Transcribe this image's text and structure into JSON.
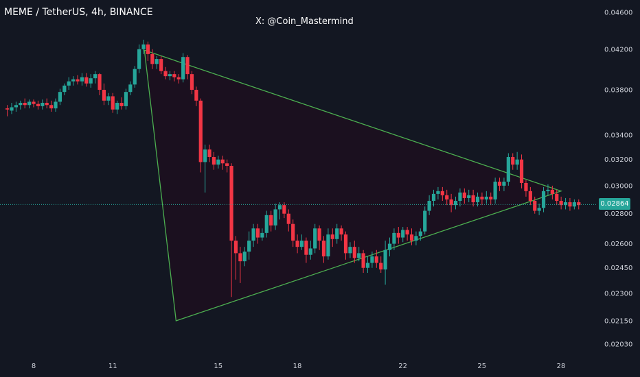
{
  "header": {
    "title": "MEME / TetherUS, 4h, BINANCE",
    "watermark": "X: @Coin_Mastermind"
  },
  "price_badge": "0.02864",
  "colors": {
    "background": "#131722",
    "up": "#26a69a",
    "down": "#f23645",
    "triangle_line": "#4caf50",
    "triangle_fill": "#1b1020",
    "axis_text": "#d1d4dc"
  },
  "chart_data": {
    "type": "candlestick",
    "title": "MEME / TetherUS, 4h, BINANCE",
    "price_axis": {
      "ticks": [
        0.046,
        0.042,
        0.038,
        0.034,
        0.032,
        0.03,
        0.028,
        0.026,
        0.0245,
        0.023,
        0.0215,
        0.0203
      ],
      "tick_labels": [
        "0.04600",
        "0.04200",
        "0.03800",
        "0.03400",
        "0.03200",
        "0.03000",
        "0.02800",
        "0.02600",
        "0.02450",
        "0.02300",
        "0.02150",
        "0.02030"
      ],
      "scale": "log"
    },
    "time_axis": {
      "tick_labels": [
        "8",
        "11",
        "15",
        "18",
        "22",
        "25",
        "28"
      ],
      "tick_days": [
        8,
        11,
        15,
        18,
        22,
        25,
        28
      ]
    },
    "current_price": 0.02864,
    "pattern": {
      "type": "triangle",
      "vertices": [
        {
          "day": 12.2,
          "price": 0.0419
        },
        {
          "day": 28.0,
          "price": 0.0296
        },
        {
          "day": 13.4,
          "price": 0.0215
        }
      ]
    },
    "candles_x_start_day": 7.0,
    "candles_step_days": 0.1667,
    "candles": [
      [
        0.0363,
        0.0362,
        0.0366,
        0.0356
      ],
      [
        0.0361,
        0.0364,
        0.0368,
        0.0358
      ],
      [
        0.0364,
        0.0366,
        0.0369,
        0.036
      ],
      [
        0.0366,
        0.0368,
        0.037,
        0.0362
      ],
      [
        0.0368,
        0.0366,
        0.0372,
        0.0363
      ],
      [
        0.0366,
        0.0369,
        0.0371,
        0.0363
      ],
      [
        0.0369,
        0.0367,
        0.0371,
        0.0364
      ],
      [
        0.0367,
        0.0365,
        0.037,
        0.0362
      ],
      [
        0.0365,
        0.0368,
        0.0371,
        0.0362
      ],
      [
        0.0368,
        0.0366,
        0.0372,
        0.0363
      ],
      [
        0.0366,
        0.0363,
        0.037,
        0.036
      ],
      [
        0.0363,
        0.0369,
        0.0372,
        0.036
      ],
      [
        0.0369,
        0.0378,
        0.0381,
        0.0366
      ],
      [
        0.0378,
        0.0384,
        0.0386,
        0.0375
      ],
      [
        0.0384,
        0.0388,
        0.0392,
        0.038
      ],
      [
        0.0388,
        0.039,
        0.0393,
        0.0384
      ],
      [
        0.039,
        0.0388,
        0.0394,
        0.0385
      ],
      [
        0.0388,
        0.0392,
        0.0396,
        0.0384
      ],
      [
        0.0392,
        0.0386,
        0.0396,
        0.0383
      ],
      [
        0.0386,
        0.0391,
        0.0395,
        0.0382
      ],
      [
        0.0391,
        0.0395,
        0.0398,
        0.0386
      ],
      [
        0.0395,
        0.038,
        0.0396,
        0.0375
      ],
      [
        0.038,
        0.037,
        0.0386,
        0.0366
      ],
      [
        0.037,
        0.0374,
        0.0377,
        0.0366
      ],
      [
        0.0374,
        0.0362,
        0.0377,
        0.0359
      ],
      [
        0.0362,
        0.0368,
        0.037,
        0.0358
      ],
      [
        0.0368,
        0.0365,
        0.0373,
        0.0362
      ],
      [
        0.0365,
        0.0378,
        0.0381,
        0.0362
      ],
      [
        0.0378,
        0.0385,
        0.0388,
        0.0375
      ],
      [
        0.0385,
        0.04,
        0.0403,
        0.0382
      ],
      [
        0.04,
        0.042,
        0.0425,
        0.0396
      ],
      [
        0.042,
        0.0425,
        0.043,
        0.0415
      ],
      [
        0.0425,
        0.0415,
        0.0428,
        0.0408
      ],
      [
        0.0415,
        0.0405,
        0.042,
        0.04
      ],
      [
        0.0405,
        0.041,
        0.0413,
        0.04
      ],
      [
        0.041,
        0.0398,
        0.0413,
        0.0395
      ],
      [
        0.0398,
        0.0393,
        0.0402,
        0.039
      ],
      [
        0.0393,
        0.0395,
        0.0398,
        0.0389
      ],
      [
        0.0395,
        0.0392,
        0.0398,
        0.0388
      ],
      [
        0.0392,
        0.039,
        0.0395,
        0.0386
      ],
      [
        0.039,
        0.0412,
        0.0416,
        0.0387
      ],
      [
        0.0412,
        0.0395,
        0.0414,
        0.039
      ],
      [
        0.0395,
        0.038,
        0.0398,
        0.0376
      ],
      [
        0.038,
        0.037,
        0.0383,
        0.0365
      ],
      [
        0.037,
        0.0318,
        0.0372,
        0.031
      ],
      [
        0.0318,
        0.0328,
        0.0332,
        0.0295
      ],
      [
        0.0328,
        0.0322,
        0.0332,
        0.0318
      ],
      [
        0.0322,
        0.0316,
        0.0326,
        0.0312
      ],
      [
        0.0316,
        0.032,
        0.0323,
        0.0313
      ],
      [
        0.032,
        0.0317,
        0.0323,
        0.0312
      ],
      [
        0.0317,
        0.0315,
        0.032,
        0.031
      ],
      [
        0.0315,
        0.0262,
        0.0317,
        0.0228
      ],
      [
        0.0262,
        0.0254,
        0.0265,
        0.0238
      ],
      [
        0.0254,
        0.0249,
        0.0258,
        0.0236
      ],
      [
        0.0249,
        0.0255,
        0.0258,
        0.0246
      ],
      [
        0.0255,
        0.0262,
        0.0268,
        0.025
      ],
      [
        0.0262,
        0.027,
        0.0273,
        0.0258
      ],
      [
        0.027,
        0.0264,
        0.0273,
        0.026
      ],
      [
        0.0264,
        0.0267,
        0.027,
        0.0262
      ],
      [
        0.0267,
        0.0279,
        0.0282,
        0.0264
      ],
      [
        0.0279,
        0.0272,
        0.0282,
        0.0268
      ],
      [
        0.0272,
        0.0283,
        0.0287,
        0.0269
      ],
      [
        0.0283,
        0.0286,
        0.0288,
        0.0276
      ],
      [
        0.0286,
        0.028,
        0.0288,
        0.0277
      ],
      [
        0.028,
        0.0273,
        0.0283,
        0.0268
      ],
      [
        0.0273,
        0.0262,
        0.0276,
        0.0258
      ],
      [
        0.0262,
        0.0258,
        0.0266,
        0.0254
      ],
      [
        0.0258,
        0.0262,
        0.0266,
        0.0256
      ],
      [
        0.0262,
        0.0253,
        0.0264,
        0.0248
      ],
      [
        0.0253,
        0.0257,
        0.0262,
        0.025
      ],
      [
        0.0257,
        0.027,
        0.0273,
        0.0254
      ],
      [
        0.027,
        0.0262,
        0.0272,
        0.0256
      ],
      [
        0.0262,
        0.0252,
        0.0265,
        0.0248
      ],
      [
        0.0252,
        0.0266,
        0.027,
        0.025
      ],
      [
        0.0266,
        0.0263,
        0.027,
        0.0258
      ],
      [
        0.0263,
        0.027,
        0.0273,
        0.026
      ],
      [
        0.027,
        0.0266,
        0.0272,
        0.0262
      ],
      [
        0.0266,
        0.0254,
        0.0268,
        0.025
      ],
      [
        0.0254,
        0.0258,
        0.0261,
        0.0251
      ],
      [
        0.0258,
        0.0251,
        0.0262,
        0.0248
      ],
      [
        0.0251,
        0.0254,
        0.0258,
        0.0249
      ],
      [
        0.0254,
        0.0245,
        0.0256,
        0.0242
      ],
      [
        0.0245,
        0.0248,
        0.0252,
        0.0242
      ],
      [
        0.0248,
        0.0252,
        0.0255,
        0.0245
      ],
      [
        0.0252,
        0.0248,
        0.0256,
        0.0245
      ],
      [
        0.0248,
        0.0244,
        0.0252,
        0.0242
      ],
      [
        0.0244,
        0.0256,
        0.0262,
        0.0235
      ],
      [
        0.0256,
        0.026,
        0.0264,
        0.0252
      ],
      [
        0.026,
        0.0267,
        0.027,
        0.0256
      ],
      [
        0.0267,
        0.0264,
        0.0271,
        0.026
      ],
      [
        0.0264,
        0.0269,
        0.0271,
        0.0261
      ],
      [
        0.0269,
        0.0266,
        0.0271,
        0.0262
      ],
      [
        0.0266,
        0.0262,
        0.027,
        0.0259
      ],
      [
        0.0262,
        0.0265,
        0.0268,
        0.0259
      ],
      [
        0.0265,
        0.0268,
        0.027,
        0.0262
      ],
      [
        0.0268,
        0.0282,
        0.0285,
        0.0266
      ],
      [
        0.0282,
        0.0289,
        0.0293,
        0.0279
      ],
      [
        0.0289,
        0.0294,
        0.0297,
        0.0285
      ],
      [
        0.0294,
        0.0296,
        0.0299,
        0.029
      ],
      [
        0.0296,
        0.0293,
        0.0299,
        0.0289
      ],
      [
        0.0293,
        0.029,
        0.0297,
        0.0286
      ],
      [
        0.029,
        0.0286,
        0.0294,
        0.0281
      ],
      [
        0.0286,
        0.0289,
        0.0292,
        0.0283
      ],
      [
        0.0289,
        0.0295,
        0.0298,
        0.0285
      ],
      [
        0.0295,
        0.0291,
        0.0298,
        0.0287
      ],
      [
        0.0291,
        0.0293,
        0.0297,
        0.0288
      ],
      [
        0.0293,
        0.0288,
        0.0297,
        0.0285
      ],
      [
        0.0288,
        0.0292,
        0.0295,
        0.0285
      ],
      [
        0.0292,
        0.029,
        0.0295,
        0.0286
      ],
      [
        0.029,
        0.0292,
        0.0296,
        0.0287
      ],
      [
        0.0292,
        0.029,
        0.0295,
        0.0286
      ],
      [
        0.029,
        0.0303,
        0.0306,
        0.0287
      ],
      [
        0.0303,
        0.03,
        0.0306,
        0.0296
      ],
      [
        0.03,
        0.0303,
        0.0306,
        0.0296
      ],
      [
        0.0303,
        0.0322,
        0.0325,
        0.03
      ],
      [
        0.0322,
        0.0316,
        0.0325,
        0.0312
      ],
      [
        0.0316,
        0.032,
        0.0326,
        0.0312
      ],
      [
        0.032,
        0.0302,
        0.0324,
        0.0298
      ],
      [
        0.0302,
        0.0296,
        0.0304,
        0.0292
      ],
      [
        0.0296,
        0.0289,
        0.0299,
        0.0286
      ],
      [
        0.0289,
        0.0282,
        0.0292,
        0.028
      ],
      [
        0.0282,
        0.0284,
        0.0287,
        0.0279
      ],
      [
        0.0284,
        0.0296,
        0.0299,
        0.0281
      ],
      [
        0.0296,
        0.0297,
        0.0301,
        0.0293
      ],
      [
        0.0297,
        0.0294,
        0.03,
        0.029
      ],
      [
        0.0294,
        0.0289,
        0.0297,
        0.0286
      ],
      [
        0.0289,
        0.0286,
        0.0292,
        0.0283
      ],
      [
        0.0286,
        0.0288,
        0.0291,
        0.0283
      ],
      [
        0.0288,
        0.0285,
        0.0291,
        0.0282
      ],
      [
        0.0285,
        0.0288,
        0.029,
        0.0283
      ],
      [
        0.0288,
        0.0286,
        0.029,
        0.0283
      ]
    ]
  }
}
